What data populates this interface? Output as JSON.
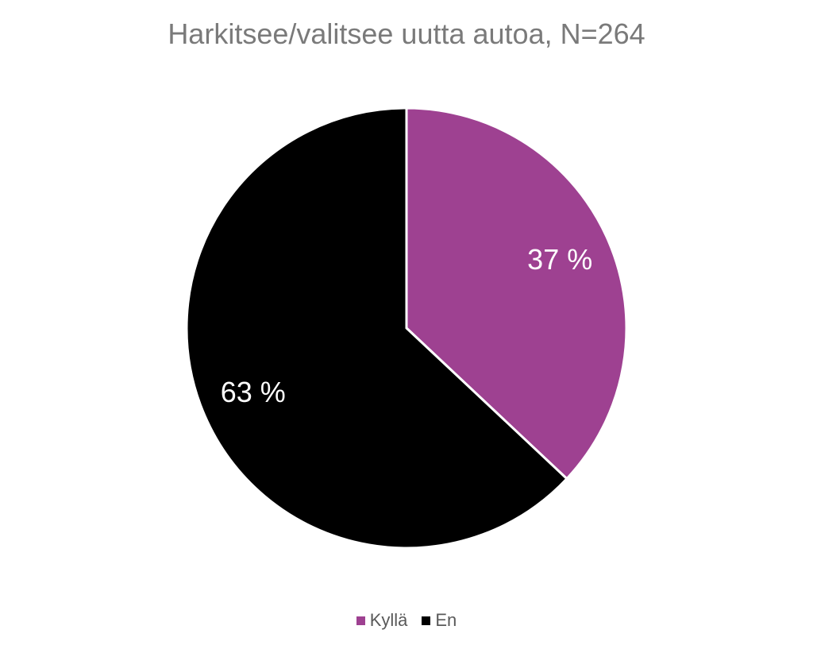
{
  "chart_data": {
    "type": "pie",
    "title": "Harkitsee/valitsee uutta autoa, N=264",
    "categories": [
      "Kyllä",
      "En"
    ],
    "values": [
      37,
      63
    ],
    "labels": [
      "37 %",
      "63 %"
    ],
    "colors": [
      "#9e4191",
      "#000000"
    ],
    "legend_position": "bottom"
  }
}
